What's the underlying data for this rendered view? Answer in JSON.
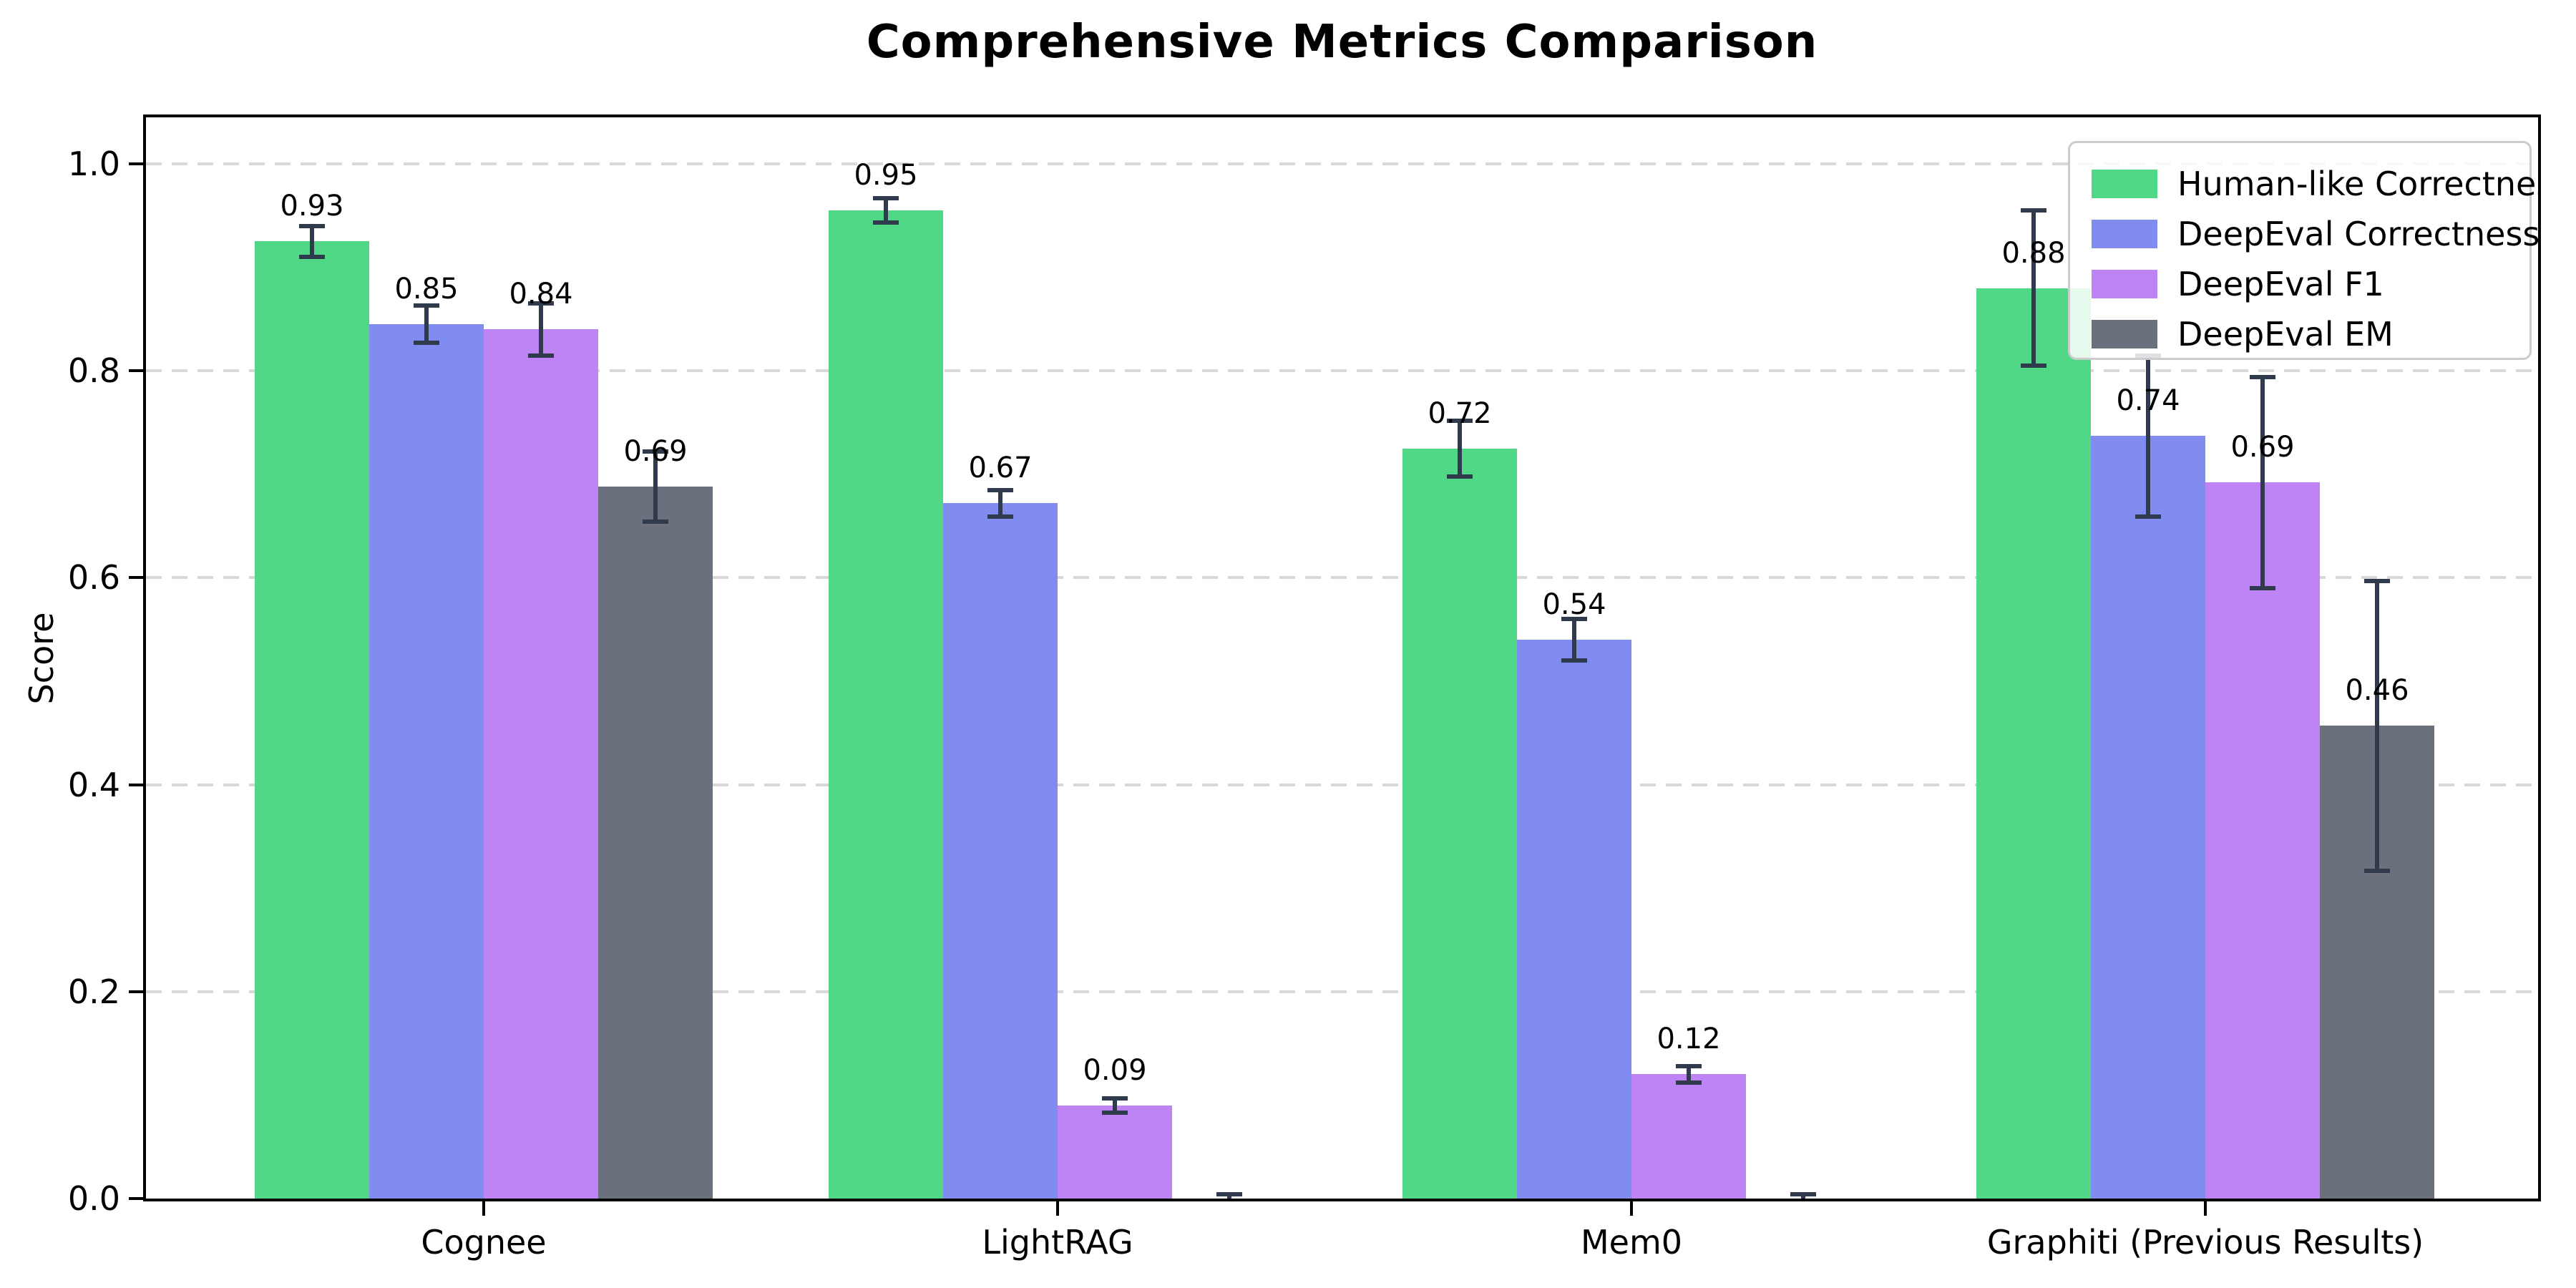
{
  "title": "Comprehensive Metrics Comparison",
  "chart_data": {
    "type": "bar",
    "title": "Comprehensive Metrics Comparison",
    "xlabel": "",
    "ylabel": "Score",
    "categories": [
      "Cognee",
      "LightRAG",
      "Mem0",
      "Graphiti (Previous Results)"
    ],
    "series": [
      {
        "name": "Human-like Correctness",
        "color": "#50d886",
        "values": [
          0.925,
          0.955,
          0.725,
          0.88
        ],
        "errors": [
          0.015,
          0.012,
          0.027,
          0.075
        ],
        "labels": [
          "0.93",
          "0.95",
          "0.72",
          "0.88"
        ]
      },
      {
        "name": "DeepEval Correctness",
        "color": "#808cf0",
        "values": [
          0.845,
          0.672,
          0.54,
          0.737
        ],
        "errors": [
          0.018,
          0.013,
          0.02,
          0.078
        ],
        "labels": [
          "0.85",
          "0.67",
          "0.54",
          "0.74"
        ]
      },
      {
        "name": "DeepEval F1",
        "color": "#be84f5",
        "values": [
          0.84,
          0.09,
          0.12,
          0.692
        ],
        "errors": [
          0.025,
          0.007,
          0.008,
          0.102
        ],
        "labels": [
          "0.84",
          "0.09",
          "0.12",
          "0.69"
        ]
      },
      {
        "name": "DeepEval EM",
        "color": "#6a717d",
        "values": [
          0.688,
          0.0,
          0.0,
          0.457
        ],
        "errors": [
          0.034,
          0.004,
          0.004,
          0.14
        ],
        "labels": [
          "0.69",
          "",
          "",
          "0.46"
        ]
      }
    ],
    "yticks": [
      0.0,
      0.2,
      0.4,
      0.6,
      0.8,
      1.0
    ],
    "ytick_labels": [
      "0.0",
      "0.2",
      "0.4",
      "0.6",
      "0.8",
      "1.0"
    ],
    "ylim": [
      0.0,
      1.045
    ],
    "grid": "horizontal dashed",
    "legend_position": "upper right",
    "bar_label_color": "#000000",
    "error_bar_color": "#2f3b4c"
  }
}
